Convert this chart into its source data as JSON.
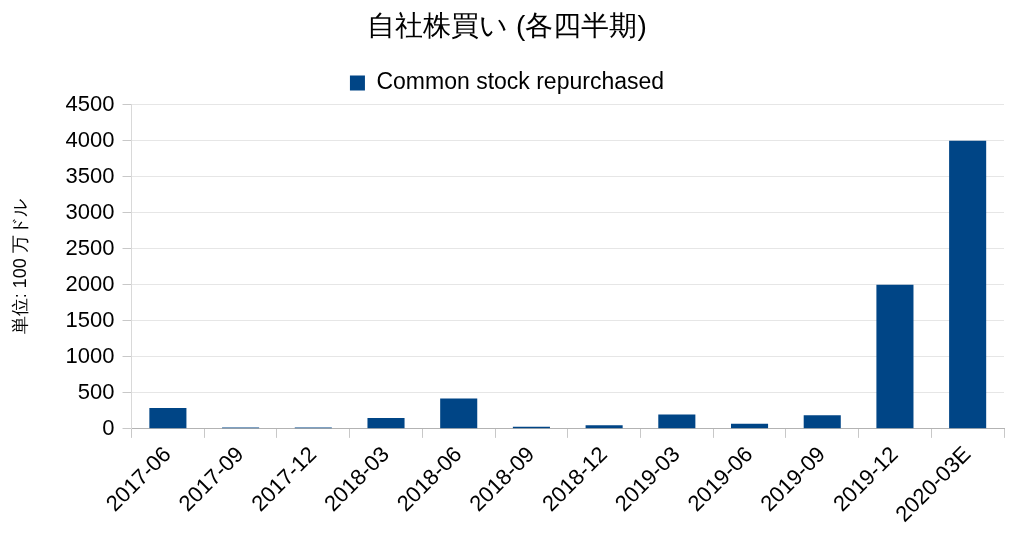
{
  "chart_data": {
    "type": "bar",
    "title": "自社株買い (各四半期)",
    "ylabel": "単位: 100 万ドル",
    "categories": [
      "2017-06",
      "2017-09",
      "2017-12",
      "2018-03",
      "2018-06",
      "2018-09",
      "2018-12",
      "2019-03",
      "2019-06",
      "2019-09",
      "2019-12",
      "2020-03E"
    ],
    "series": [
      {
        "name": "Common stock repurchased",
        "color": "#004586",
        "values": [
          290,
          20,
          20,
          150,
          420,
          30,
          50,
          200,
          70,
          190,
          2000,
          4000
        ]
      }
    ],
    "ylim": [
      0,
      4500
    ],
    "yticks": [
      0,
      500,
      1000,
      1500,
      2000,
      2500,
      3000,
      3500,
      4000,
      4500
    ],
    "grid": "y",
    "legend": "top"
  }
}
